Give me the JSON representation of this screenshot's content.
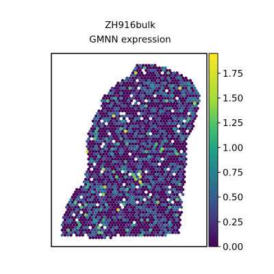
{
  "chart_data": {
    "type": "scatter",
    "subtype": "spatial-hex-expression",
    "title_lines": [
      "ZH916bulk",
      "GMNN expression"
    ],
    "colorbar": {
      "colormap": "viridis",
      "vmin": 0.0,
      "vmax": 1.95,
      "ticks": [
        0.0,
        0.25,
        0.5,
        0.75,
        1.0,
        1.25,
        1.5,
        1.75
      ],
      "tick_labels": [
        "0.00",
        "0.25",
        "0.50",
        "0.75",
        "1.00",
        "1.25",
        "1.50",
        "1.75"
      ]
    },
    "axes": {
      "frame": true,
      "ticks": false,
      "grid": false
    },
    "spot_value_distribution": {
      "zero_fraction": 0.55,
      "low_range": [
        0.2,
        0.7
      ],
      "high_spots_approx_max": 1.9
    }
  }
}
